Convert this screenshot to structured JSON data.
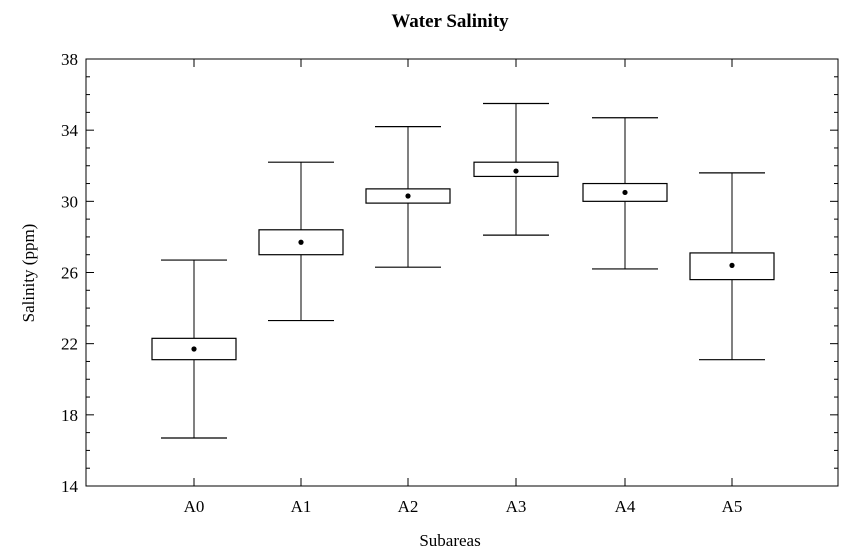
{
  "chart_data": {
    "type": "box",
    "title": "Water Salinity",
    "xlabel": "Subareas",
    "ylabel": "Salinity (ppm)",
    "ylim": [
      14,
      38
    ],
    "yticks": [
      14,
      18,
      22,
      26,
      30,
      34,
      38
    ],
    "categories": [
      "A0",
      "A1",
      "A2",
      "A3",
      "A4",
      "A5"
    ],
    "mean": [
      21.7,
      27.7,
      30.3,
      31.7,
      30.5,
      26.4
    ],
    "box_low": [
      21.1,
      27.0,
      29.9,
      31.4,
      30.0,
      25.6
    ],
    "box_high": [
      22.3,
      28.4,
      30.7,
      32.2,
      31.0,
      27.1
    ],
    "whisker_low": [
      16.7,
      23.3,
      26.3,
      28.1,
      26.2,
      21.1
    ],
    "whisker_high": [
      26.7,
      32.2,
      34.2,
      35.5,
      34.7,
      31.6
    ],
    "grid": false,
    "legend": "none"
  },
  "colors": {
    "background": "#ffffff",
    "ink": "#000000",
    "box_fill": "#ffffff"
  }
}
